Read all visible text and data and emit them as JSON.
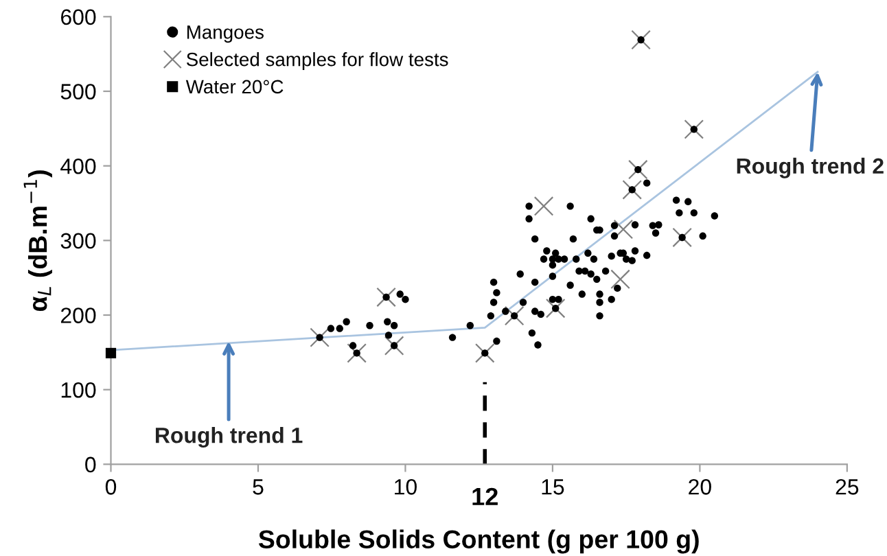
{
  "chart_data": {
    "type": "scatter",
    "xlabel": "Soluble Solids Content (g per 100 g)",
    "ylabel": "α$_{L}$ (dB.m$^{−1}$)",
    "xlim": [
      0,
      25
    ],
    "xticks": [
      0,
      5,
      10,
      15,
      20,
      25
    ],
    "ylim": [
      0,
      600
    ],
    "yticks": [
      0,
      100,
      200,
      300,
      400,
      500,
      600
    ],
    "grid": false,
    "legend": "top left",
    "series": [
      {
        "name": "Mangoes",
        "marker": "circle",
        "color": "#000000",
        "x": [
          7.09,
          7.47,
          7.77,
          8.0,
          8.22,
          8.35,
          8.79,
          9.35,
          9.39,
          9.43,
          9.62,
          9.62,
          9.82,
          10.0,
          11.6,
          12.2,
          12.7,
          12.9,
          13.0,
          13.1,
          13.0,
          13.1,
          13.4,
          13.7,
          13.9,
          14.0,
          14.2,
          14.2,
          14.3,
          14.4,
          14.4,
          14.5,
          14.4,
          14.6,
          14.7,
          14.8,
          15.0,
          15.0,
          15.1,
          15.0,
          15.2,
          15.0,
          15.1,
          15.2,
          15.4,
          15.6,
          15.6,
          15.7,
          15.8,
          15.9,
          16.0,
          16.1,
          16.2,
          16.3,
          16.3,
          16.4,
          16.5,
          16.6,
          16.5,
          16.6,
          16.6,
          16.6,
          16.8,
          17.0,
          17.0,
          17.1,
          17.1,
          17.2,
          17.3,
          17.4,
          17.5,
          17.7,
          17.7,
          17.8,
          17.8,
          17.9,
          18.0,
          18.2,
          18.2,
          18.4,
          18.5,
          18.6,
          19.2,
          19.3,
          19.4,
          19.6,
          19.8,
          19.8,
          20.1,
          20.5
        ],
        "values": [
          170,
          182,
          182,
          191,
          159,
          149,
          186,
          224,
          191,
          173,
          186,
          159,
          228,
          221,
          170,
          186,
          149,
          199,
          244,
          230,
          217,
          165,
          205,
          199,
          255,
          217,
          346,
          329,
          176,
          302,
          244,
          160,
          205,
          201,
          275,
          286,
          275,
          267,
          283,
          252,
          275,
          221,
          209,
          221,
          275,
          346,
          240,
          302,
          275,
          259,
          228,
          259,
          283,
          255,
          329,
          275,
          314,
          314,
          248,
          228,
          217,
          199,
          259,
          221,
          279,
          306,
          320,
          236,
          283,
          283,
          275,
          273,
          368,
          321,
          286,
          395,
          569,
          377,
          280,
          320,
          310,
          321,
          354,
          337,
          304,
          352,
          449,
          337,
          306,
          333
        ]
      },
      {
        "name": "Selected samples for flow tests",
        "marker": "cross",
        "color": "#808080",
        "x": [
          7.09,
          8.35,
          9.35,
          9.62,
          12.7,
          13.7,
          14.7,
          15.1,
          17.3,
          17.4,
          17.7,
          17.9,
          18.0,
          19.4,
          19.8
        ],
        "values": [
          170,
          149,
          224,
          159,
          149,
          199,
          346,
          209,
          248,
          315,
          368,
          395,
          569,
          304,
          449
        ]
      },
      {
        "name": "Water 20°C",
        "marker": "square",
        "color": "#000000",
        "x": [
          0
        ],
        "values": [
          149
        ]
      },
      {
        "type": "line",
        "marker": "none",
        "line_style": "solid",
        "color": "#a9c4e0",
        "x": [
          0,
          12.7,
          24
        ],
        "values": [
          153,
          183,
          526
        ]
      },
      {
        "type": "line",
        "marker": "none",
        "line_style": "dashed",
        "color": "#000000",
        "x": [
          12.7,
          12.7
        ],
        "values": [
          0,
          110
        ]
      }
    ],
    "annotations": [
      {
        "text": "Rough trend 1",
        "x": 4,
        "y": 165
      },
      {
        "text": "Rough trend 2",
        "x": 24,
        "y": 526
      },
      {
        "text": "12",
        "x": 12.7,
        "y": 0
      }
    ]
  }
}
